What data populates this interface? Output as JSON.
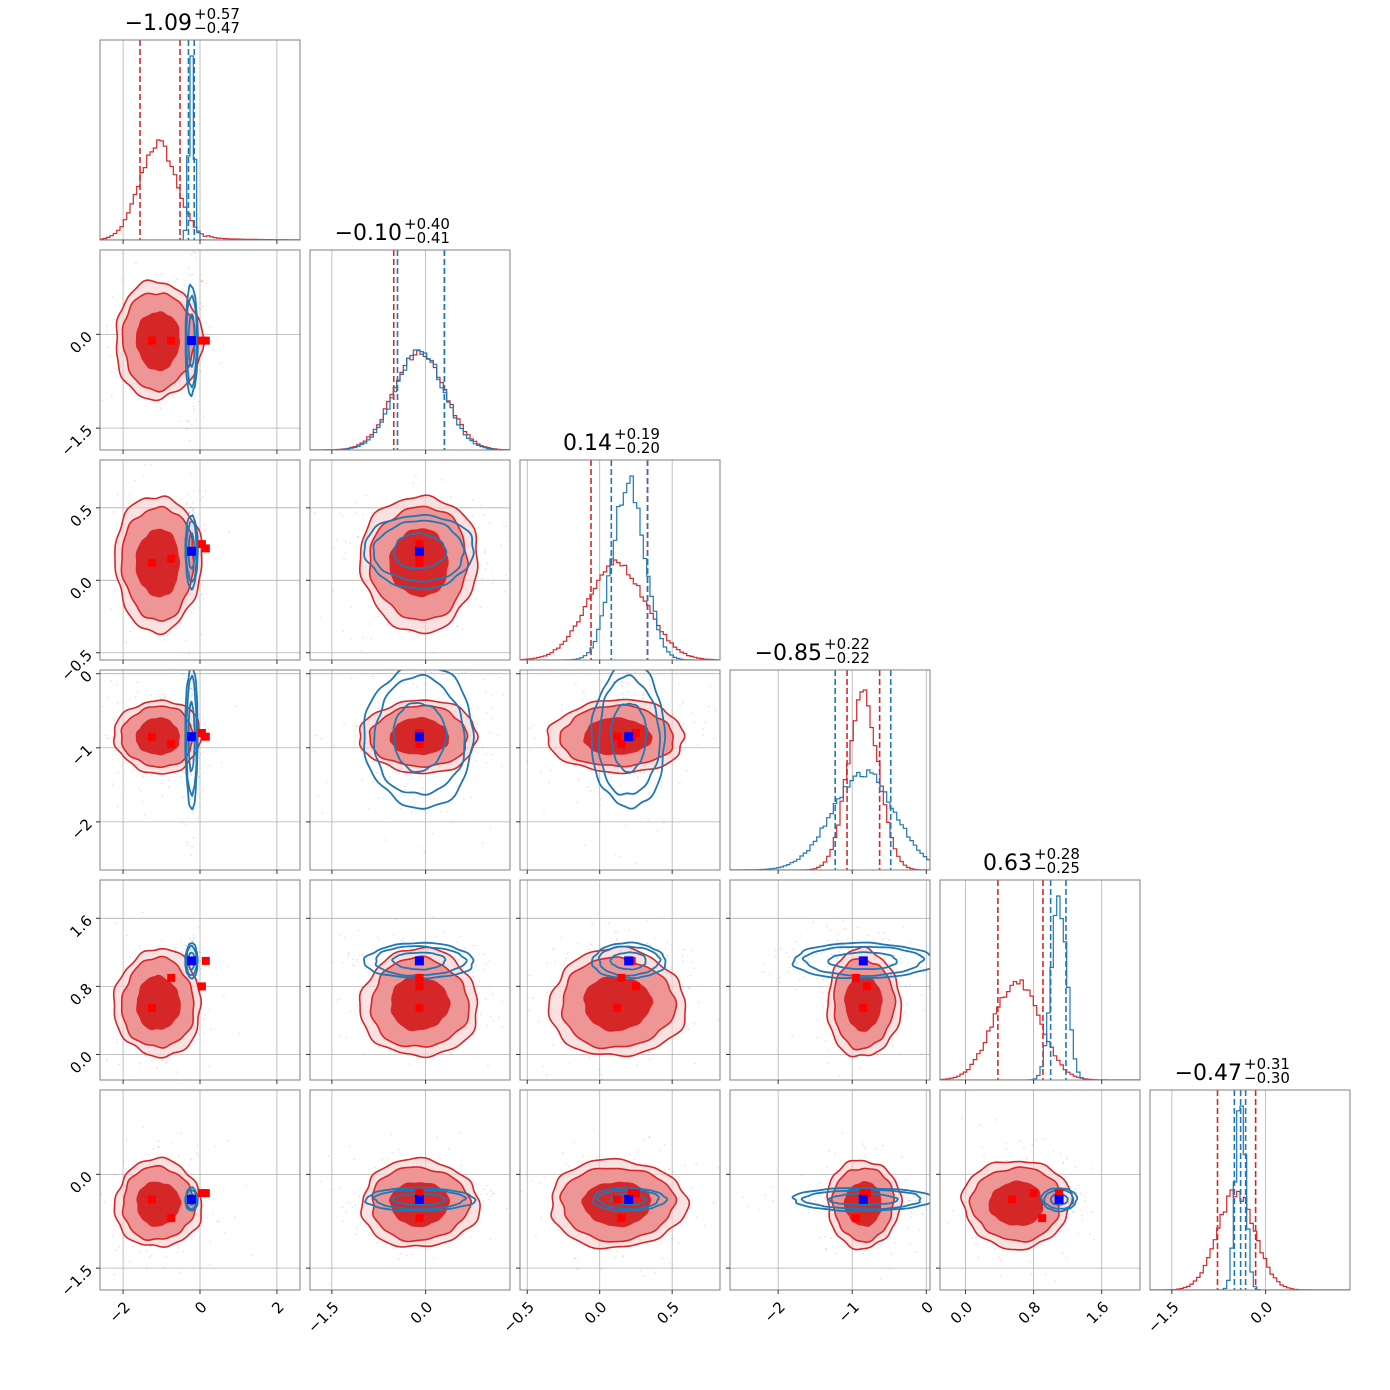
{
  "chart_data": {
    "type": "corner",
    "n_params": 6,
    "grid": true,
    "colors": {
      "red": "#d62728",
      "blue": "#1f77b4",
      "red_light": "#ee9595",
      "marker_red": "#ff0000",
      "marker_blue": "#0000ff",
      "grid": "#b0b0b0",
      "frame": "#808080"
    },
    "titles": [
      {
        "median": "−1.09",
        "plus": "+0.57",
        "minus": "−0.47"
      },
      {
        "median": "−0.10",
        "plus": "+0.40",
        "minus": "−0.41"
      },
      {
        "median": "0.14",
        "plus": "+0.19",
        "minus": "−0.20"
      },
      {
        "median": "−0.85",
        "plus": "+0.22",
        "minus": "−0.22"
      },
      {
        "median": "0.63",
        "plus": "+0.28",
        "minus": "−0.25"
      },
      {
        "median": "−0.47",
        "plus": "+0.31",
        "minus": "−0.30"
      }
    ],
    "ranges": [
      [
        -2.6,
        2.6
      ],
      [
        -1.85,
        1.35
      ],
      [
        -0.55,
        0.83
      ],
      [
        -2.65,
        0.05
      ],
      [
        -0.3,
        2.05
      ],
      [
        -1.85,
        1.35
      ]
    ],
    "ticks": [
      {
        "values": [
          -2,
          0,
          2
        ],
        "labels": [
          "−2",
          "0",
          "2"
        ]
      },
      {
        "values": [
          -1.5,
          0.0
        ],
        "labels": [
          "−1.5",
          "0.0"
        ]
      },
      {
        "values": [
          -0.5,
          0.0,
          0.5
        ],
        "labels": [
          "−0.5",
          "0.0",
          "0.5"
        ]
      },
      {
        "values": [
          -2,
          -1,
          0
        ],
        "labels": [
          "−2",
          "−1",
          "0"
        ]
      },
      {
        "values": [
          0.0,
          0.8,
          1.6
        ],
        "labels": [
          "0.0",
          "0.8",
          "1.6"
        ]
      },
      {
        "values": [
          -1.5,
          0.0
        ],
        "labels": [
          "−1.5",
          "0.0"
        ]
      }
    ],
    "ytick_labels": [
      null,
      {
        "values": [
          0.0,
          -1.5
        ],
        "labels": [
          "0.0",
          "−1.5"
        ]
      },
      {
        "values": [
          0.5,
          0.0,
          -0.5
        ],
        "labels": [
          "0.5",
          "0.0",
          "−0.5"
        ]
      },
      {
        "values": [
          0,
          -1,
          -2
        ],
        "labels": [
          "0",
          "−1",
          "−2"
        ]
      },
      {
        "values": [
          1.6,
          0.8,
          0.0
        ],
        "labels": [
          "1.6",
          "0.8",
          "0.0"
        ]
      },
      {
        "values": [
          0.0,
          -1.5
        ],
        "labels": [
          "0.0",
          "−1.5"
        ]
      }
    ],
    "series": [
      {
        "name": "",
        "color": "#d62728",
        "means": [
          -1.09,
          -0.1,
          0.12,
          -0.85,
          0.6,
          -0.47
        ],
        "stds": [
          0.48,
          0.4,
          0.2,
          0.21,
          0.27,
          0.3
        ],
        "quantiles_16_50_84": [
          [
            -1.56,
            -1.09,
            -0.52
          ],
          [
            -0.51,
            -0.1,
            0.3
          ],
          [
            -0.06,
            0.14,
            0.33
          ],
          [
            -1.07,
            -0.85,
            -0.63
          ],
          [
            0.38,
            0.63,
            0.91
          ],
          [
            -0.77,
            -0.47,
            -0.16
          ]
        ],
        "markers": [
          [
            -1.25,
            -0.1,
            0.12,
            -0.85,
            0.55,
            -0.4
          ],
          [
            -0.75,
            -0.1,
            0.15,
            -0.95,
            0.9,
            -0.7
          ],
          [
            0.05,
            -0.1,
            0.25,
            -0.8,
            0.8,
            -0.3
          ],
          [
            0.15,
            -0.1,
            0.22,
            -0.85,
            1.1,
            -0.3
          ]
        ]
      },
      {
        "name": "",
        "color": "#1f77b4",
        "means": [
          -0.22,
          -0.1,
          0.2,
          -0.85,
          1.1,
          -0.4
        ],
        "stds": [
          0.07,
          0.38,
          0.11,
          0.42,
          0.09,
          0.08
        ],
        "quantiles_16_50_84": [
          [
            -0.3,
            -0.22,
            -0.15
          ],
          [
            -0.45,
            -0.1,
            0.3
          ],
          [
            0.08,
            0.2,
            0.33
          ],
          [
            -1.23,
            -0.85,
            -0.48
          ],
          [
            1.0,
            1.1,
            1.18
          ],
          [
            -0.5,
            -0.4,
            -0.32
          ]
        ],
        "markers": [
          [
            -0.22,
            -0.1,
            0.2,
            -0.85,
            1.1,
            -0.4
          ]
        ]
      }
    ]
  }
}
